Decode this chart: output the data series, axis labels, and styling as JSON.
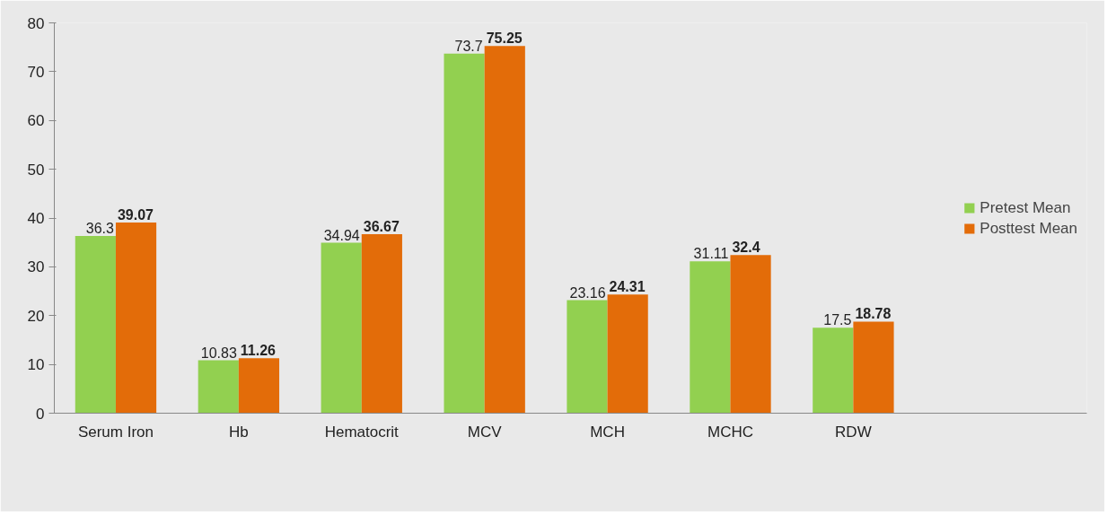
{
  "chart_data": {
    "type": "bar",
    "categories": [
      "Serum Iron",
      "Hb",
      "Hematocrit",
      "MCV",
      "MCH",
      "MCHC",
      "RDW"
    ],
    "series": [
      {
        "name": "Pretest Mean",
        "color": "#92d050",
        "values": [
          36.3,
          10.83,
          34.94,
          73.7,
          23.16,
          31.11,
          17.5
        ]
      },
      {
        "name": "Posttest Mean",
        "color": "#e36c09",
        "values": [
          39.07,
          11.26,
          36.67,
          75.25,
          24.31,
          32.4,
          18.78
        ]
      }
    ],
    "ylim": [
      0,
      80
    ],
    "yticks": [
      0,
      10,
      20,
      30,
      40,
      50,
      60,
      70,
      80
    ],
    "legend": "right",
    "data_labels": true
  }
}
